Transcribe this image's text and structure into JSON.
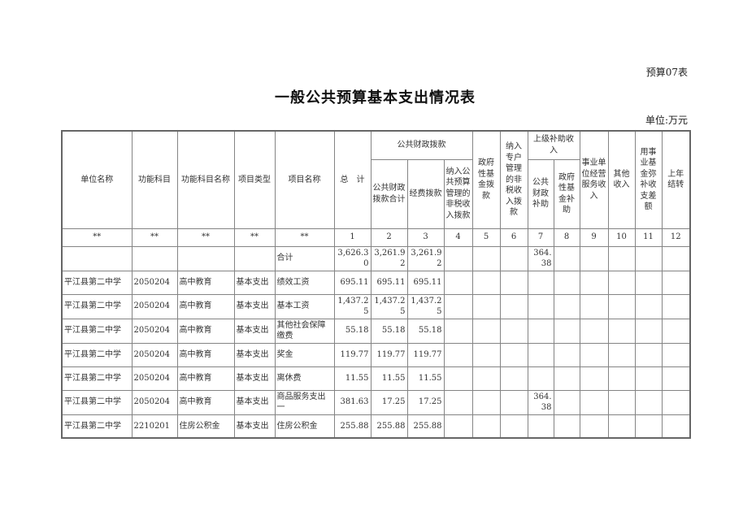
{
  "page": {
    "form_label": "预算07表",
    "title": "一般公共预算基本支出情况表",
    "unit_label": "单位:万元"
  },
  "table": {
    "header": {
      "unit_name": "单位名称",
      "function_code": "功能科目",
      "function_name": "功能科目名称",
      "project_type": "项目类型",
      "project_name": "项目名称",
      "total": "总　计",
      "public_finance_group": "公共财政拨款",
      "public_finance_total": "公共财政拨款合计",
      "funding_allocation": "经费拨款",
      "nontax_into_budget": "纳入公共预算管理的非税收入拨款",
      "gov_fund": "政府性基金拨款",
      "nontax_special_account": "纳入专户管理的非税收入拨款",
      "higher_subsidy_group": "上级补助收入",
      "public_finance_subsidy": "公共财政补助",
      "gov_fund_subsidy": "政府性基金补助",
      "business_revenue": "事业单位经营服务收入",
      "other_income": "其他收入",
      "fund_balance": "用事业基金弥补收支差额",
      "carryover": "上年结转"
    },
    "col_marks": [
      "**",
      "**",
      "**",
      "**",
      "**"
    ],
    "col_numbers": [
      "1",
      "2",
      "3",
      "4",
      "5",
      "6",
      "7",
      "8",
      "9",
      "10",
      "11",
      "12"
    ],
    "rows": [
      [
        "",
        "",
        "",
        "",
        "合计",
        "3,626.30",
        "3,261.92",
        "3,261.92",
        "",
        "",
        "",
        "364.38",
        "",
        "",
        "",
        "",
        ""
      ],
      [
        "平江县第二中学",
        "2050204",
        "高中教育",
        "基本支出",
        "绩效工资",
        "695.11",
        "695.11",
        "695.11",
        "",
        "",
        "",
        "",
        "",
        "",
        "",
        "",
        ""
      ],
      [
        "平江县第二中学",
        "2050204",
        "高中教育",
        "基本支出",
        "基本工资",
        "1,437.25",
        "1,437.25",
        "1,437.25",
        "",
        "",
        "",
        "",
        "",
        "",
        "",
        "",
        ""
      ],
      [
        "平江县第二中学",
        "2050204",
        "高中教育",
        "基本支出",
        "其他社会保障缴费",
        "55.18",
        "55.18",
        "55.18",
        "",
        "",
        "",
        "",
        "",
        "",
        "",
        "",
        ""
      ],
      [
        "平江县第二中学",
        "2050204",
        "高中教育",
        "基本支出",
        "奖金",
        "119.77",
        "119.77",
        "119.77",
        "",
        "",
        "",
        "",
        "",
        "",
        "",
        "",
        ""
      ],
      [
        "平江县第二中学",
        "2050204",
        "高中教育",
        "基本支出",
        "离休费",
        "11.55",
        "11.55",
        "11.55",
        "",
        "",
        "",
        "",
        "",
        "",
        "",
        "",
        ""
      ],
      [
        "平江县第二中学",
        "2050204",
        "高中教育",
        "基本支出",
        "商品服务支出一",
        "381.63",
        "17.25",
        "17.25",
        "",
        "",
        "",
        "364.38",
        "",
        "",
        "",
        "",
        ""
      ],
      [
        "平江县第二中学",
        "2210201",
        "住房公积金",
        "基本支出",
        "住房公积金",
        "255.88",
        "255.88",
        "255.88",
        "",
        "",
        "",
        "",
        "",
        "",
        "",
        "",
        ""
      ]
    ]
  }
}
